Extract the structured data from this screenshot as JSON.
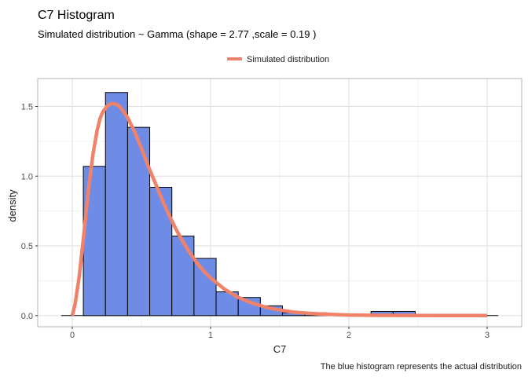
{
  "chart_data": {
    "type": "bar",
    "title": "C7 Histogram",
    "subtitle": "Simulated distribution ~ Gamma (shape = 2.77 ,scale = 0.19 )",
    "xlabel": "C7",
    "ylabel": "density",
    "caption": "The blue histogram represents the actual distribution",
    "xlim": [
      -0.25,
      3.25
    ],
    "ylim": [
      -0.08,
      1.7
    ],
    "xticks": [
      0,
      1,
      2,
      3
    ],
    "xtick_labels": [
      "0",
      "1",
      "2",
      "3"
    ],
    "yticks": [
      0.0,
      0.5,
      1.0,
      1.5
    ],
    "ytick_labels": [
      "0.0",
      "0.5",
      "1.0",
      "1.5"
    ],
    "grid": true,
    "legend_position": "top",
    "histogram": {
      "name": "",
      "bin_edges": [
        0.08,
        0.24,
        0.4,
        0.56,
        0.72,
        0.88,
        1.04,
        1.2,
        1.36,
        1.52,
        1.68,
        1.84,
        2.0,
        2.16,
        2.32,
        2.48
      ],
      "density": [
        1.07,
        1.6,
        1.35,
        0.92,
        0.57,
        0.41,
        0.17,
        0.13,
        0.07,
        0.02,
        0.02,
        0.0,
        0.0,
        0.03,
        0.03
      ],
      "fill_color": "#6e8ce6",
      "edge_color": "#000000"
    },
    "series": [
      {
        "name": "Simulated distribution",
        "type": "line",
        "color": "#f0826a",
        "x": [
          0,
          0.02,
          0.05,
          0.08,
          0.1,
          0.12,
          0.15,
          0.18,
          0.2,
          0.22,
          0.25,
          0.28,
          0.3,
          0.33,
          0.35,
          0.38,
          0.4,
          0.45,
          0.5,
          0.55,
          0.6,
          0.65,
          0.7,
          0.75,
          0.8,
          0.85,
          0.9,
          0.95,
          1.0,
          1.1,
          1.2,
          1.3,
          1.4,
          1.5,
          1.6,
          1.7,
          1.8,
          1.9,
          2.0,
          2.2,
          2.4,
          2.6,
          2.8,
          3.0
        ],
        "y": [
          0,
          0.08,
          0.28,
          0.55,
          0.74,
          0.93,
          1.16,
          1.33,
          1.41,
          1.46,
          1.5,
          1.52,
          1.52,
          1.51,
          1.49,
          1.45,
          1.42,
          1.32,
          1.2,
          1.07,
          0.95,
          0.83,
          0.72,
          0.62,
          0.53,
          0.45,
          0.38,
          0.32,
          0.27,
          0.19,
          0.13,
          0.09,
          0.06,
          0.04,
          0.025,
          0.017,
          0.011,
          0.007,
          0.004,
          0.002,
          0.001,
          0.0003,
          0.0001,
          0.0
        ]
      }
    ]
  }
}
